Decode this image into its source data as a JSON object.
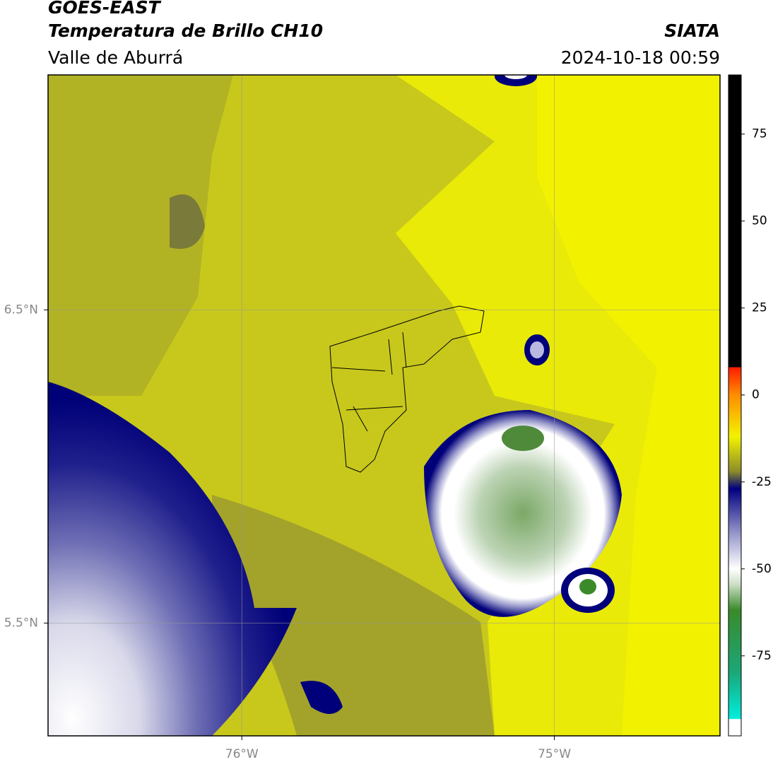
{
  "header": {
    "satellite": "GOES-EAST",
    "product": "Temperatura de Brillo CH10",
    "region": "Valle de Aburrá",
    "source": "SIATA",
    "datetime": "2024-10-18 00:59"
  },
  "map": {
    "lon_range": [
      -76.62,
      -74.47
    ],
    "lat_range": [
      5.14,
      7.25
    ],
    "lon_ticks": [
      {
        "value": -76,
        "label": "76°W"
      },
      {
        "value": -75,
        "label": "75°W"
      }
    ],
    "lat_ticks": [
      {
        "value": 6.5,
        "label": "6.5°N"
      },
      {
        "value": 5.5,
        "label": "5.5°N"
      }
    ]
  },
  "colorbar": {
    "range": [
      -98,
      92
    ],
    "ticks": [
      75,
      50,
      25,
      0,
      -25,
      -50,
      -75
    ]
  }
}
